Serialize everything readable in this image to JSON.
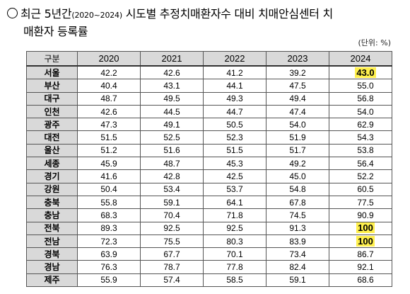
{
  "title": {
    "bullet": "○",
    "part1": "최근 5년간",
    "range": "(2020~2024)",
    "part2": " 시도별 추정치매환자수 대비 치매안심센터 치",
    "line2": "매환자 등록률"
  },
  "unit": "(단위: %)",
  "table": {
    "header": {
      "region": "구분",
      "years": [
        "2020",
        "2021",
        "2022",
        "2023",
        "2024"
      ]
    },
    "rows": [
      {
        "region": "서울",
        "values": [
          "42.2",
          "42.6",
          "41.2",
          "39.2",
          "43.0"
        ],
        "highlight": true
      },
      {
        "region": "부산",
        "values": [
          "40.4",
          "43.1",
          "44.1",
          "47.5",
          "55.0"
        ],
        "highlight": false
      },
      {
        "region": "대구",
        "values": [
          "48.7",
          "49.5",
          "49.3",
          "49.4",
          "56.8"
        ],
        "highlight": false
      },
      {
        "region": "인천",
        "values": [
          "42.6",
          "44.5",
          "44.7",
          "47.4",
          "54.0"
        ],
        "highlight": false
      },
      {
        "region": "광주",
        "values": [
          "47.3",
          "49.1",
          "50.5",
          "54.0",
          "62.9"
        ],
        "highlight": false
      },
      {
        "region": "대전",
        "values": [
          "51.5",
          "52.5",
          "52.3",
          "51.9",
          "54.3"
        ],
        "highlight": false
      },
      {
        "region": "울산",
        "values": [
          "51.2",
          "51.6",
          "51.5",
          "51.7",
          "53.8"
        ],
        "highlight": false
      },
      {
        "region": "세종",
        "values": [
          "45.9",
          "48.7",
          "45.3",
          "49.2",
          "56.4"
        ],
        "highlight": false
      },
      {
        "region": "경기",
        "values": [
          "41.6",
          "42.8",
          "42.5",
          "45.0",
          "52.2"
        ],
        "highlight": false
      },
      {
        "region": "강원",
        "values": [
          "50.4",
          "53.4",
          "53.7",
          "54.8",
          "60.5"
        ],
        "highlight": false
      },
      {
        "region": "충북",
        "values": [
          "55.8",
          "59.1",
          "64.1",
          "67.8",
          "77.5"
        ],
        "highlight": false
      },
      {
        "region": "충남",
        "values": [
          "68.3",
          "70.4",
          "71.8",
          "74.5",
          "90.9"
        ],
        "highlight": false
      },
      {
        "region": "전북",
        "values": [
          "89.3",
          "92.5",
          "92.5",
          "91.3",
          "100"
        ],
        "highlight": true
      },
      {
        "region": "전남",
        "values": [
          "72.3",
          "75.5",
          "80.3",
          "83.9",
          "100"
        ],
        "highlight": true
      },
      {
        "region": "경북",
        "values": [
          "63.9",
          "67.7",
          "70.1",
          "73.4",
          "86.7"
        ],
        "highlight": false
      },
      {
        "region": "경남",
        "values": [
          "76.3",
          "78.7",
          "77.8",
          "82.4",
          "92.1"
        ],
        "highlight": false
      },
      {
        "region": "제주",
        "values": [
          "55.9",
          "57.4",
          "58.5",
          "59.1",
          "68.6"
        ],
        "highlight": false
      }
    ]
  },
  "colors": {
    "header_bg": "#d9d9d9",
    "highlight": "#fff04d"
  }
}
